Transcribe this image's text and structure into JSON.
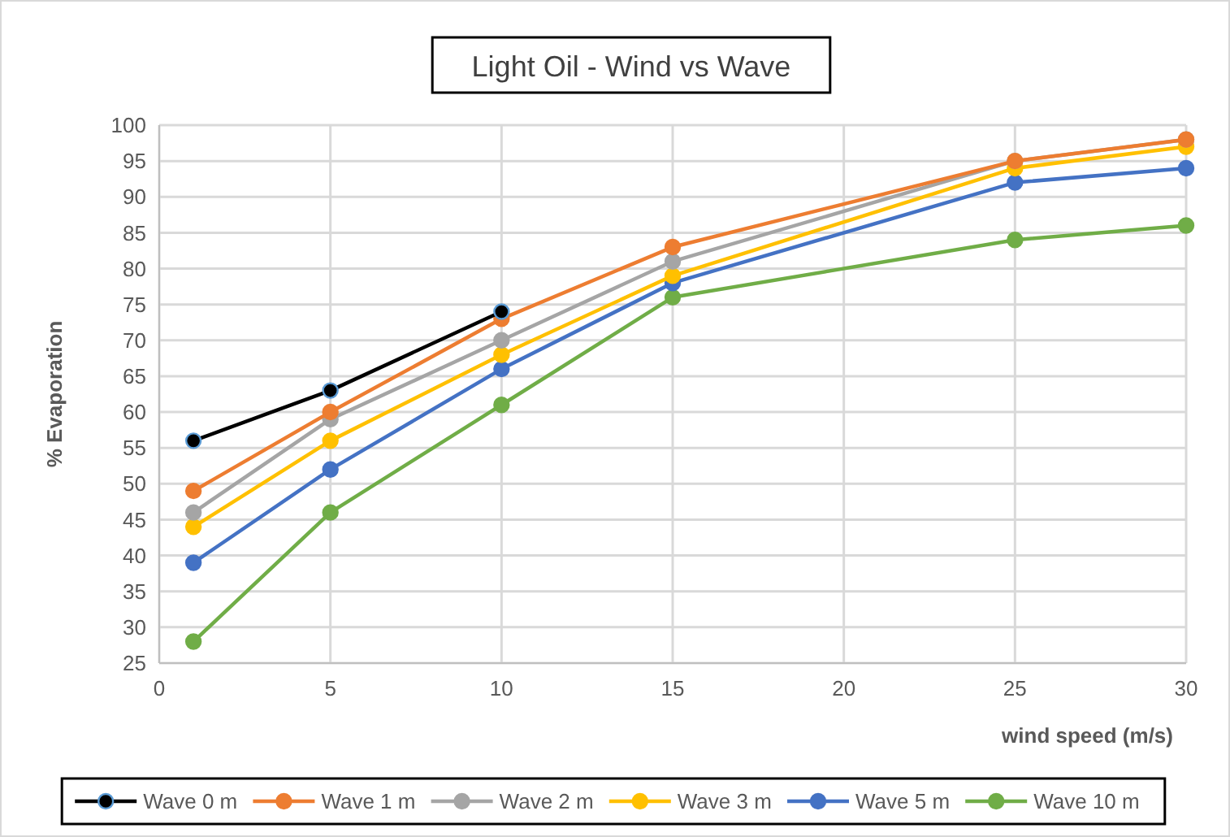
{
  "chart_data": {
    "type": "line",
    "title": "Light Oil - Wind vs Wave",
    "xlabel": "wind speed (m/s)",
    "ylabel": "% Evaporation",
    "x": [
      1,
      5,
      10,
      15,
      25,
      30
    ],
    "series": [
      {
        "name": "Wave 0 m",
        "color": "#000000",
        "values": [
          56,
          63,
          74,
          null,
          null,
          null
        ]
      },
      {
        "name": "Wave 1 m",
        "color": "#ed7d31",
        "values": [
          49,
          60,
          73,
          83,
          95,
          98
        ]
      },
      {
        "name": "Wave 2 m",
        "color": "#a5a5a5",
        "values": [
          46,
          59,
          70,
          81,
          95,
          98
        ]
      },
      {
        "name": "Wave 3 m",
        "color": "#ffc000",
        "values": [
          44,
          56,
          68,
          79,
          94,
          97
        ]
      },
      {
        "name": "Wave 5 m",
        "color": "#4472c4",
        "values": [
          39,
          52,
          66,
          78,
          92,
          94
        ]
      },
      {
        "name": "Wave 10 m",
        "color": "#70ad47",
        "values": [
          28,
          46,
          61,
          76,
          84,
          86
        ]
      }
    ],
    "xlim": [
      0,
      30
    ],
    "xticks": [
      0,
      5,
      10,
      15,
      20,
      25,
      30
    ],
    "ylim": [
      25,
      100
    ],
    "yticks": [
      25,
      30,
      35,
      40,
      45,
      50,
      55,
      60,
      65,
      70,
      75,
      80,
      85,
      90,
      95,
      100
    ],
    "grid": true,
    "legend": "bottom",
    "marker": "circle",
    "line_style": "solid"
  }
}
